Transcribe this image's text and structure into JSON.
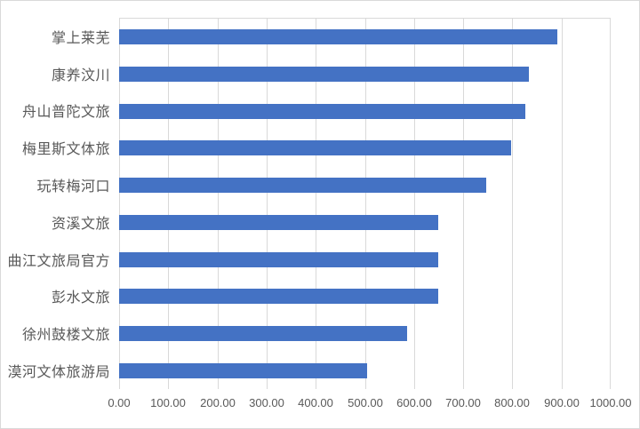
{
  "chart_data": {
    "type": "bar",
    "orientation": "horizontal",
    "title": "",
    "xlabel": "",
    "ylabel": "",
    "categories": [
      "掌上莱芜",
      "康养汶川",
      "舟山普陀文旅",
      "梅里斯文体旅",
      "玩转梅河口",
      "资溪文旅",
      "曲江文旅局官方",
      "彭水文旅",
      "徐州鼓楼文旅",
      "漠河文体旅游局"
    ],
    "values": [
      891,
      834,
      826,
      797,
      747,
      650,
      650,
      650,
      586,
      505
    ],
    "xlim": [
      0,
      1000
    ],
    "x_tick_interval": 100,
    "x_tick_labels": [
      "0.00",
      "100.00",
      "200.00",
      "300.00",
      "400.00",
      "500.00",
      "600.00",
      "700.00",
      "800.00",
      "900.00",
      "1000.00"
    ],
    "grid": "vertical-only",
    "legend": "none",
    "colors": {
      "bar": "#4472C4",
      "gridline": "#D9D9D9",
      "axis_text": "#595959",
      "frame_border": "#D9D9D9",
      "background": "#FFFFFF"
    }
  }
}
